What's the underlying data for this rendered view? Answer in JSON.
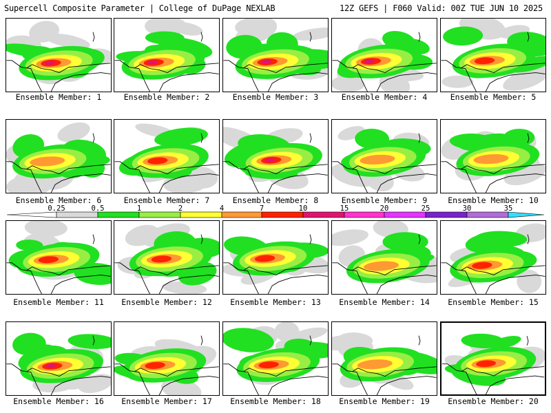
{
  "header": {
    "left": "Supercell Composite Parameter | College of DuPage NEXLAB",
    "right": "12Z GEFS | F060 Valid: 00Z TUE JUN 10 2025"
  },
  "colorbar": {
    "ticks": [
      "0.25",
      "0.5",
      "1",
      "2",
      "4",
      "7",
      "10",
      "15",
      "20",
      "25",
      "30",
      "35"
    ],
    "colors": [
      "#d9d9d9",
      "#21e021",
      "#99ee44",
      "#ffff33",
      "#ff9933",
      "#ff2200",
      "#e0146e",
      "#ff33cc",
      "#e533ff",
      "#7a22cc",
      "#b06cd6",
      "#33e0ff"
    ]
  },
  "members": [
    {
      "label": "Ensemble Member: 1",
      "intensity": 4
    },
    {
      "label": "Ensemble Member: 2",
      "intensity": 4
    },
    {
      "label": "Ensemble Member: 3",
      "intensity": 4
    },
    {
      "label": "Ensemble Member: 4",
      "intensity": 4
    },
    {
      "label": "Ensemble Member: 5",
      "intensity": 3
    },
    {
      "label": "Ensemble Member: 6",
      "intensity": 2
    },
    {
      "label": "Ensemble Member: 7",
      "intensity": 3
    },
    {
      "label": "Ensemble Member: 8",
      "intensity": 4
    },
    {
      "label": "Ensemble Member: 9",
      "intensity": 2
    },
    {
      "label": "Ensemble Member: 10",
      "intensity": 2
    },
    {
      "label": "Ensemble Member: 11",
      "intensity": 3
    },
    {
      "label": "Ensemble Member: 12",
      "intensity": 3
    },
    {
      "label": "Ensemble Member: 13",
      "intensity": 3
    },
    {
      "label": "Ensemble Member: 14",
      "intensity": 2
    },
    {
      "label": "Ensemble Member: 15",
      "intensity": 3
    },
    {
      "label": "Ensemble Member: 16",
      "intensity": 4
    },
    {
      "label": "Ensemble Member: 17",
      "intensity": 3
    },
    {
      "label": "Ensemble Member: 18",
      "intensity": 3
    },
    {
      "label": "Ensemble Member: 19",
      "intensity": 2
    },
    {
      "label": "Ensemble Member: 20",
      "intensity": 3,
      "highlighted": true
    }
  ]
}
